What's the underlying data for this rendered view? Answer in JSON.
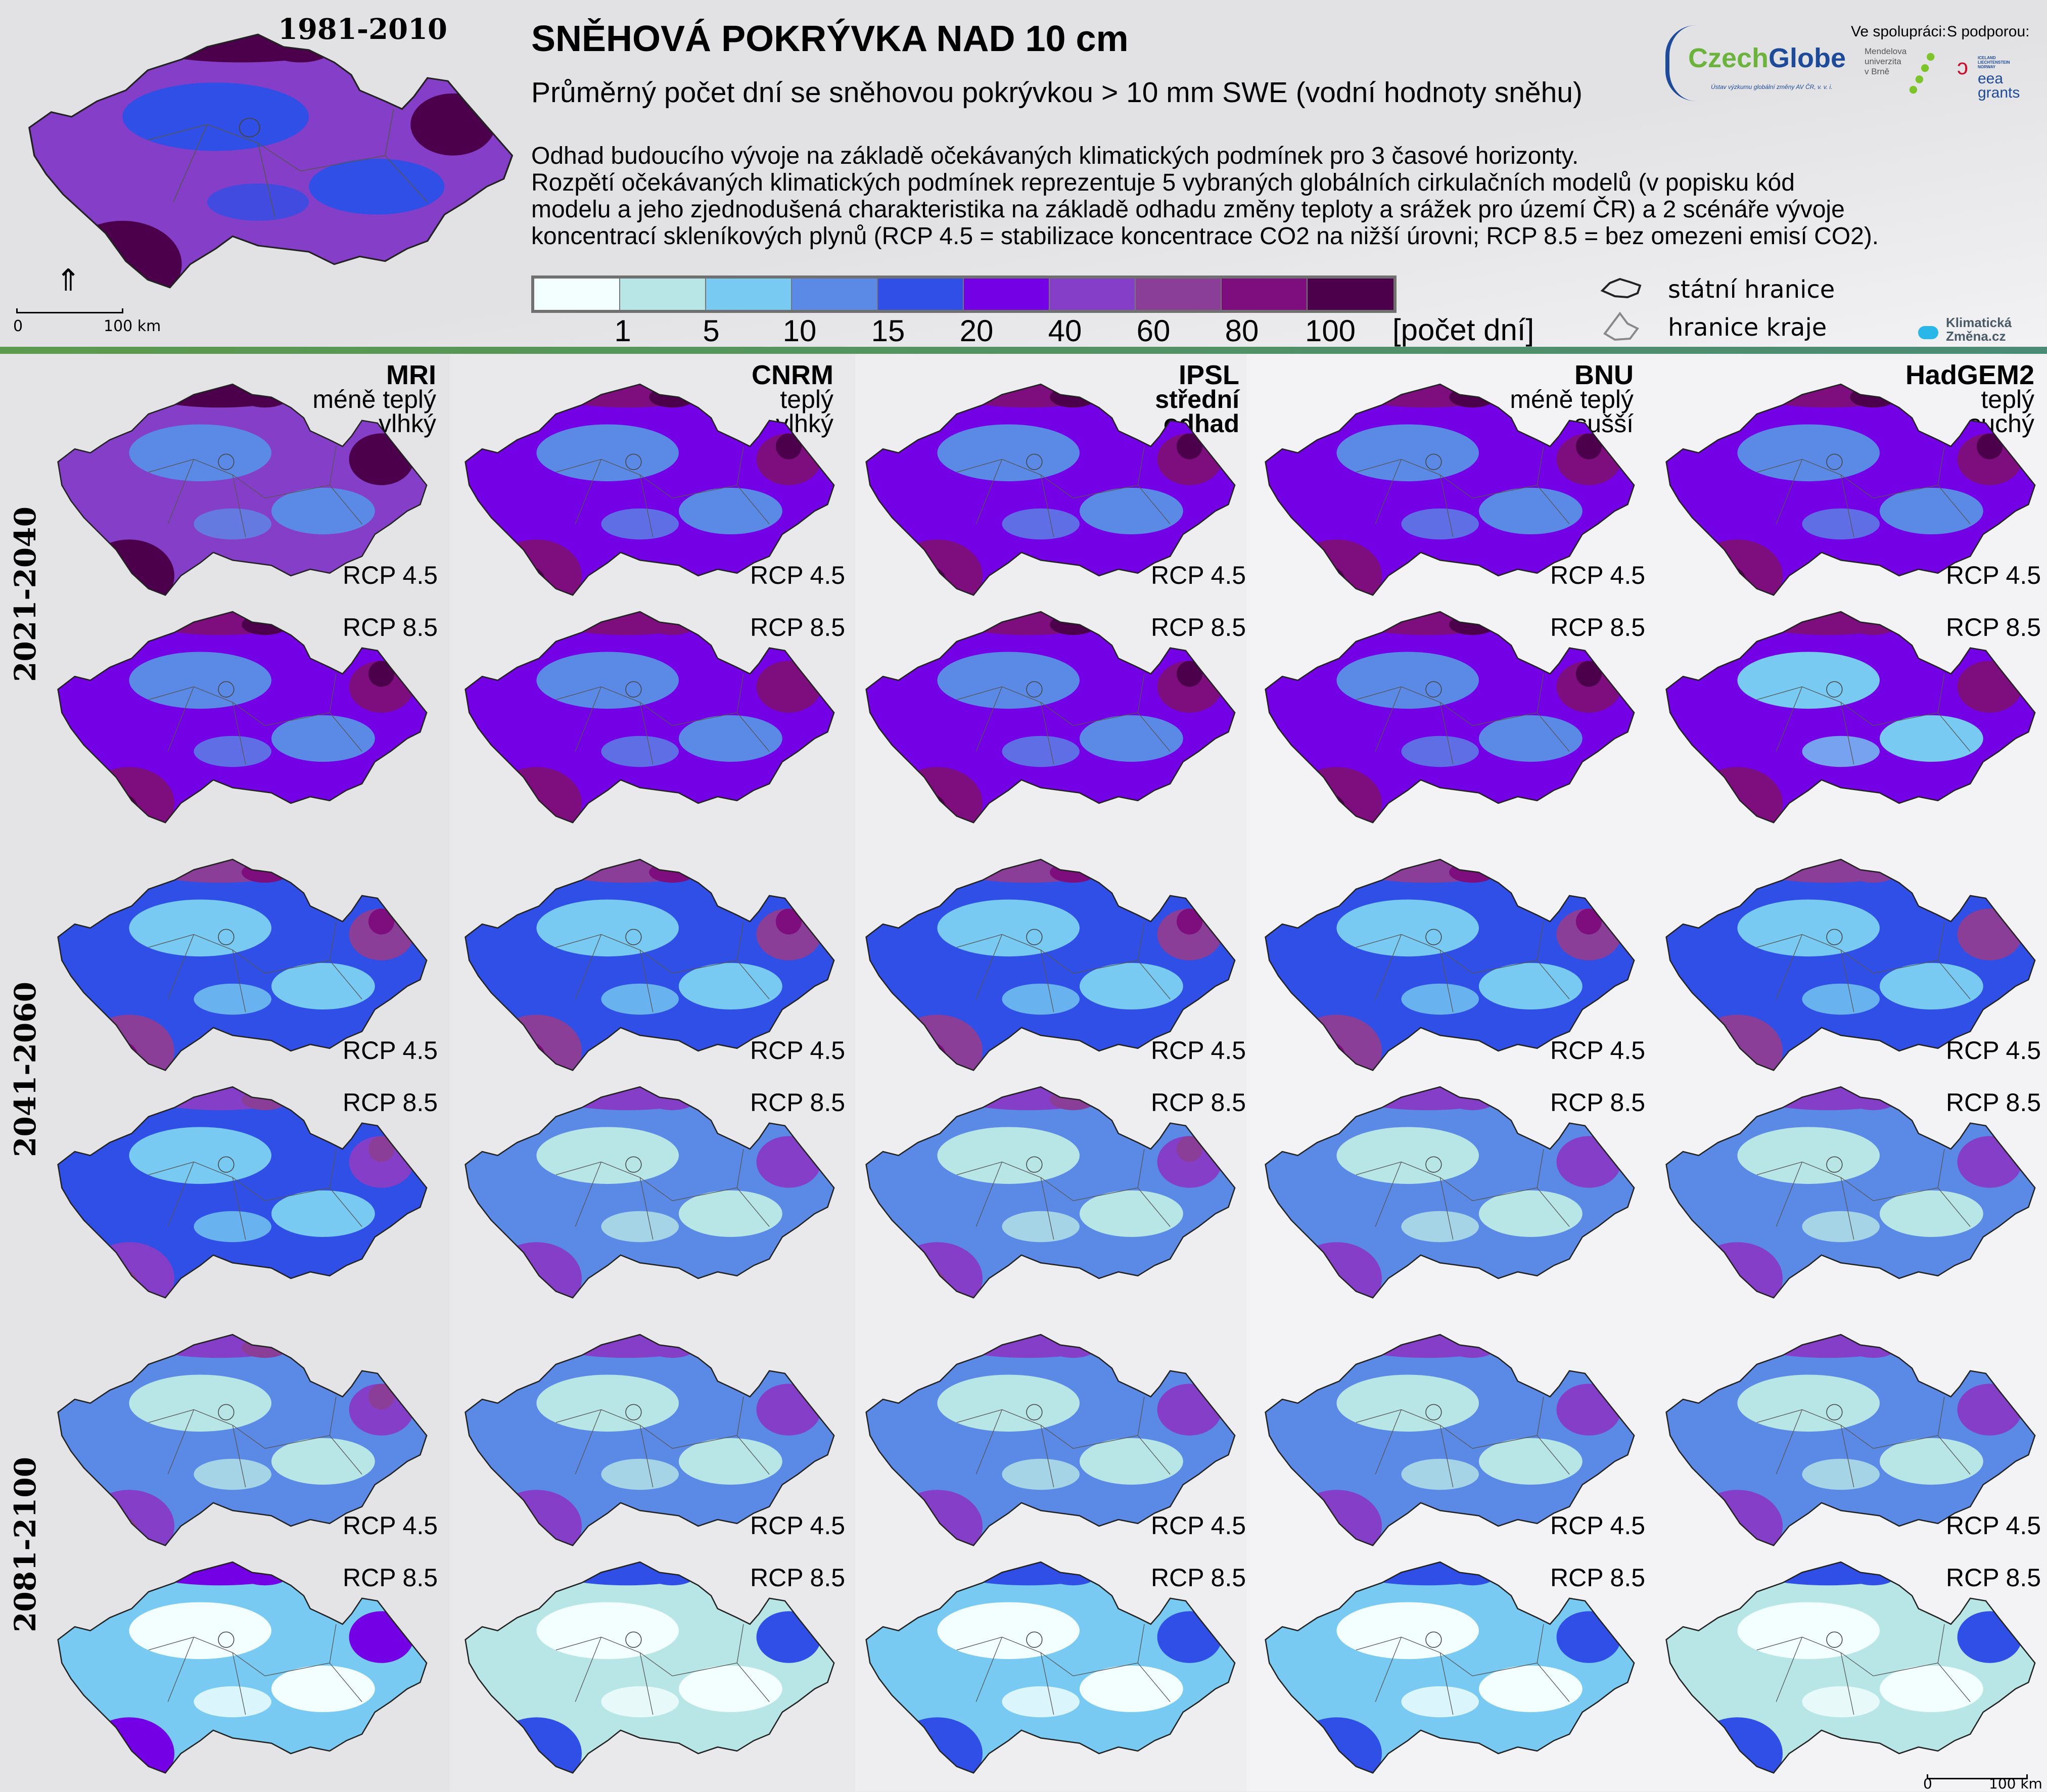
{
  "header": {
    "title": "SNĚHOVÁ POKRÝVKA NAD 10 cm",
    "subtitle": "Průměrný počet dní se sněhovou pokrývkou > 10 mm SWE (vodní hodnoty sněhu)",
    "description": [
      "Odhad budoucího vývoje na základě očekávaných klimatických podmínek pro 3 časové horizonty.",
      "Rozpětí očekávaných klimatických podmínek reprezentuje 5 vybraných globálních cirkulačních modelů (v popisku kód",
      "modelu a jeho zjednodušená charakteristika na základě odhadu změny teploty a srážek pro území ČR) a 2 scénáře vývoje",
      "koncentrací skleníkových plynů (RCP 4.5 = stabilizace koncentrace CO2 na nižší úrovni; RCP 8.5 = bez omezeni emisí CO2)."
    ]
  },
  "baseline": {
    "period": "1981-2010",
    "scale_start": "0",
    "scale_end": "100 km"
  },
  "legend": {
    "colors": [
      "#f2fffe",
      "#b8e6e6",
      "#78caf2",
      "#5b8ae6",
      "#304fe6",
      "#7400e6",
      "#853ec8",
      "#8a3e98",
      "#7e0e7e",
      "#4c004c"
    ],
    "labels": [
      "1",
      "5",
      "10",
      "15",
      "20",
      "40",
      "60",
      "80",
      "100"
    ],
    "unit": "[počet dní]"
  },
  "borders": {
    "state": "státní hranice",
    "region": "hranice kraje"
  },
  "logos": {
    "czechglobe_a": "Czech",
    "czechglobe_b": "Globe",
    "czechglobe_sub": "Ústav výzkumu globální změny AV ČR, v. v. i.",
    "cooperation": "Ve spolupráci:",
    "support": "S podporou:",
    "mendel": [
      "Mendelova",
      "univerzita",
      "v Brně"
    ],
    "eea_small": [
      "ICELAND",
      "LIECHTENSTEIN",
      "NORWAY"
    ],
    "eea": [
      "eea",
      "grants"
    ],
    "klima": [
      "Klimatická",
      "Změna.cz"
    ]
  },
  "columns": [
    {
      "model": "MRI",
      "desc": [
        "méně teplý",
        "vlhký"
      ]
    },
    {
      "model": "CNRM",
      "desc": [
        "teplý",
        "vlhký"
      ]
    },
    {
      "model": "IPSL",
      "desc": [
        "střední",
        "odhad"
      ]
    },
    {
      "model": "BNU",
      "desc": [
        "méně teplý",
        "sušší"
      ]
    },
    {
      "model": "HadGEM2",
      "desc": [
        "teplý",
        "suchý"
      ]
    }
  ],
  "periods": [
    "2021-2040",
    "2041-2060",
    "2081-2100"
  ],
  "scenarios": [
    "RCP 4.5",
    "RCP 8.5"
  ],
  "bottom_scale": {
    "start": "0",
    "end": "100 km"
  }
}
